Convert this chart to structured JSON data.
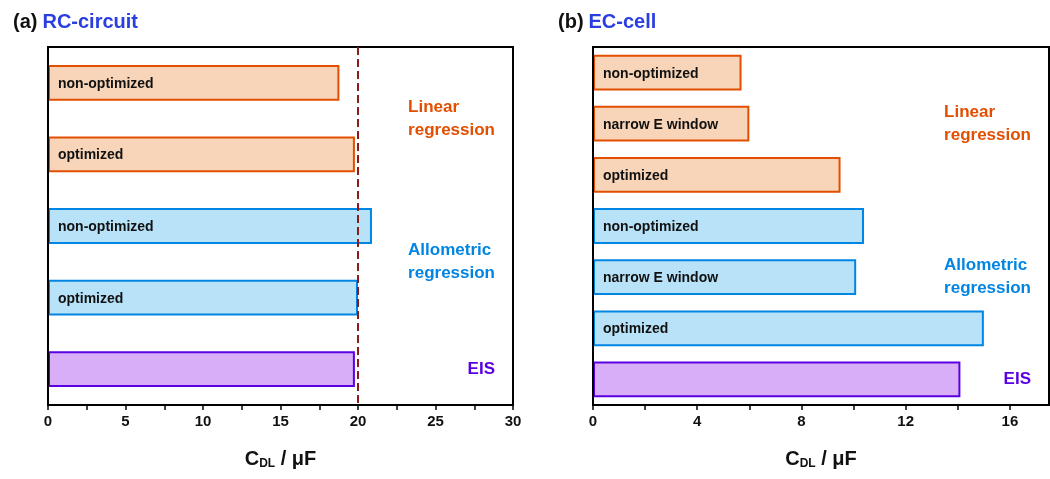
{
  "chart_data": [
    {
      "type": "bar",
      "orientation": "horizontal",
      "title": "(a) RC-circuit",
      "xlabel": "C$_{DL}$ / μF",
      "categories": [
        "non-optimized",
        "optimized",
        "non-optimized",
        "optimized",
        null
      ],
      "values": [
        18.8,
        19.8,
        20.9,
        20.0,
        19.8
      ],
      "colors": [
        "#f8d5b8",
        "#f8d5b8",
        "#b8e2f8",
        "#b8e2f8",
        "#d8aef8"
      ],
      "xlim": [
        0,
        30
      ],
      "xticks": [
        0,
        5,
        10,
        15,
        20,
        25,
        30
      ],
      "ref_lines": [
        {
          "axis": "x",
          "value": 20,
          "color": "#8b1a1a",
          "line_style": "dashed"
        }
      ],
      "annotations": [
        "Linear regression",
        "Allometric regression",
        "EIS"
      ]
    },
    {
      "type": "bar",
      "orientation": "horizontal",
      "title": "(b) EC-cell",
      "xlabel": "C$_{DL}$ / μF",
      "categories": [
        "non-optimized",
        "narrow E window",
        "optimized",
        "non-optimized",
        "narrow E window",
        "optimized",
        null
      ],
      "values": [
        5.7,
        6.0,
        9.5,
        10.4,
        10.1,
        15.0,
        14.1
      ],
      "colors": [
        "#f8d5b8",
        "#f8d5b8",
        "#f8d5b8",
        "#b8e2f8",
        "#b8e2f8",
        "#b8e2f8",
        "#d8aef8"
      ],
      "xlim": [
        0,
        17.5
      ],
      "xticks": [
        0,
        4,
        8,
        12,
        16
      ],
      "annotations": [
        "Linear regression",
        "Allometric regression",
        "EIS"
      ]
    }
  ]
}
